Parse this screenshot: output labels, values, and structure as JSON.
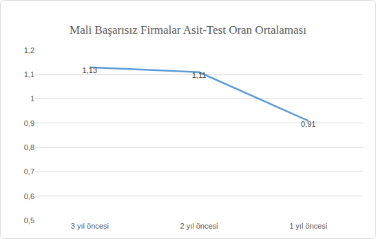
{
  "chart_data": {
    "type": "line",
    "title": "Mali Başarısız Firmalar Asit-Test Oran Ortalaması",
    "categories": [
      "3 yıl öncesi",
      "2 yıl öncesi",
      "1 yıl öncesi"
    ],
    "values": [
      1.13,
      1.11,
      0.91
    ],
    "value_labels": [
      "1,13",
      "1,11",
      "0,91"
    ],
    "data_labels": true,
    "color": "#5b9bd5",
    "ylim": [
      0.5,
      1.2
    ],
    "yticks": [
      {
        "value": 0.5,
        "label": "0,5"
      },
      {
        "value": 0.6,
        "label": "0,6"
      },
      {
        "value": 0.7,
        "label": "0,7"
      },
      {
        "value": 0.8,
        "label": "0,8"
      },
      {
        "value": 0.9,
        "label": "0,9"
      },
      1,
      {
        "value": 1.1,
        "label": "1,1"
      },
      {
        "value": 1.2,
        "label": "1,2"
      }
    ],
    "grid": true
  }
}
